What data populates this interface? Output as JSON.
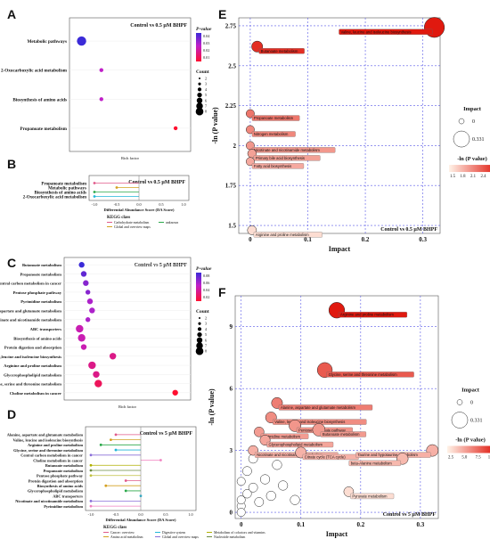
{
  "panels": {
    "A": "A",
    "B": "B",
    "C": "C",
    "D": "D",
    "E": "E",
    "F": "F"
  },
  "chart_data": [
    {
      "panel": "A",
      "type": "scatter",
      "title": "Control vs 0.5 μM BHPF",
      "ylabel": "KEGG pathways",
      "xlabel": "Rich factor",
      "categories": [
        "Metabolic pathways",
        "2-Oxocarboxylic acid metabolism",
        "Biosynthesis of amino acids",
        "Propanoate metabolism"
      ],
      "x": [
        0.01,
        0.05,
        0.05,
        0.2
      ],
      "count": [
        8,
        2,
        2,
        2
      ],
      "pvalue": [
        0.05,
        0.03,
        0.03,
        0.01
      ],
      "legend_title": "P-value",
      "legend_ticks": [
        "0.04",
        "0.03",
        "0.02",
        "0.01"
      ],
      "count_legend_title": "Count",
      "count_ticks": [
        "2",
        "3",
        "4",
        "5",
        "6",
        "7",
        "8"
      ]
    },
    {
      "panel": "B",
      "type": "bar",
      "title": "Control vs 0.5 μM BHPF",
      "xlabel": "Differential Abundance Score (DA Score)",
      "xlim": [
        -1,
        1
      ],
      "xticks": [
        "-1.0",
        "-0.5",
        "0.0",
        "0.5",
        "1.0"
      ],
      "categories": [
        "Propanoate metabolism",
        "Metabolic pathways",
        "Biosynthesis of amino acids",
        "2-Oxocarboxylic acid metabolism"
      ],
      "values": [
        -1.0,
        -0.5,
        -1.0,
        -1.0
      ],
      "count": [
        2,
        8,
        2,
        2
      ],
      "legend_title": "KEGG class",
      "legend_entries": [
        "Carbohydrate metabolism",
        "Global and overview maps",
        "unknown"
      ]
    },
    {
      "panel": "C",
      "type": "scatter",
      "title": "Control vs 5 μM BHPF",
      "ylabel": "KEGG pathways",
      "xlabel": "Rich factor",
      "categories": [
        "Butanoate metabolism",
        "Propanoate metabolism",
        "Central carbon metabolism in cancer",
        "Pentose phosphate pathway",
        "Pyrimidine metabolism",
        "Alanine,aspartate and glutamate metabolism",
        "Nicotinate and nicotinamide metabolism",
        "ABC transporters",
        "Biosynthesis of amino acids",
        "Protein digestion and absorption",
        "Valine,leucine and isoleucine biosynthesis",
        "Arginine and proline metabolism",
        "Glycerophospholipid metabolism",
        "Glycine, serine and threonine metabolism",
        "Choline metabolism in cancer"
      ],
      "x": [
        0.05,
        0.06,
        0.07,
        0.08,
        0.09,
        0.1,
        0.08,
        0.04,
        0.05,
        0.06,
        0.2,
        0.1,
        0.12,
        0.13,
        0.5
      ],
      "count": [
        4,
        4,
        4,
        3,
        4,
        4,
        3,
        6,
        6,
        4,
        5,
        6,
        5,
        6,
        4
      ],
      "pvalue": [
        0.08,
        0.07,
        0.06,
        0.06,
        0.05,
        0.05,
        0.05,
        0.04,
        0.04,
        0.04,
        0.03,
        0.03,
        0.03,
        0.02,
        0.01
      ],
      "legend_title": "P-value",
      "legend_ticks": [
        "0.08",
        "0.06",
        "0.04",
        "0.02"
      ],
      "count_legend_title": "Count",
      "count_ticks": [
        "2",
        "3",
        "4",
        "5",
        "6",
        "7",
        "8"
      ]
    },
    {
      "panel": "D",
      "type": "bar",
      "title": "Control vs 5 μM BHPF",
      "xlabel": "Differential Abundance Score (DA Score)",
      "xlim": [
        -1,
        1
      ],
      "xticks": [
        "-1.0",
        "-0.5",
        "0.0",
        "0.5",
        "1.0"
      ],
      "categories": [
        "Alanine, aspartate and glutamate metabolism",
        "Valine, leucine and isoleucine biosynthesis",
        "Arginine and proline metabolism",
        "Glycine, serine and threonine metabolism",
        "Central carbon metabolism in cancer",
        "Choline metabolism in cancer",
        "Butanoate metabolism",
        "Propanoate metabolism",
        "Pentose phosphate pathway",
        "Protein digestion and absorption",
        "Biosynthesis of amino acids",
        "Glycerophospholipid metabolism",
        "ABC transporters",
        "Nicotinate and nicotinamide metabolism",
        "Pyrimidine metabolism"
      ],
      "values": [
        -0.5,
        -0.6,
        -0.8,
        -0.5,
        -1.0,
        0.4,
        -1.0,
        -1.0,
        -1.0,
        -0.3,
        -0.7,
        -0.3,
        0.0,
        -1.0,
        -1.0
      ],
      "legend_title": "KEGG class",
      "legend_entries": [
        "Cancer: overview",
        "Amino acid metabolism",
        "Lipid metabolism",
        "Digestive system",
        "Global and overview maps",
        "Membrane transport",
        "Metabolism of cofactors and vitamins",
        "Nucleotide metabolism",
        "Carbohydrate metabolism"
      ]
    },
    {
      "panel": "E",
      "type": "scatter",
      "title": "Control vs 0.5 μM BHPF",
      "xlabel": "Impact",
      "ylabel": "-ln (P value)",
      "xlim": [
        -0.02,
        0.33
      ],
      "ylim": [
        1.45,
        2.8
      ],
      "xticks": [
        0,
        0.1,
        0.2,
        0.3
      ],
      "yticks": [
        1.5,
        1.75,
        2.0,
        2.25,
        2.5,
        2.75
      ],
      "points": [
        {
          "label": "Valine, leucine and isoleucine biosynthesis",
          "x": 0.32,
          "y": 2.74,
          "impact": 0.331,
          "v": 2.74
        },
        {
          "label": "Butanoate metabolism",
          "x": 0.012,
          "y": 2.62,
          "impact": 0.1,
          "v": 2.62
        },
        {
          "label": "Propanoate metabolism",
          "x": 0.0,
          "y": 2.2,
          "impact": 0.03,
          "v": 2.2
        },
        {
          "label": "Nitrogen metabolism",
          "x": 0.0,
          "y": 2.1,
          "impact": 0.03,
          "v": 2.1
        },
        {
          "label": "Nicotinate and nicotinamide metabolism",
          "x": 0.0,
          "y": 2.0,
          "impact": 0.03,
          "v": 2.0
        },
        {
          "label": "Primary bile acid biosynthesis",
          "x": 0.003,
          "y": 1.95,
          "impact": 0.04,
          "v": 1.95
        },
        {
          "label": "Fatty acid biosynthesis",
          "x": 0.0,
          "y": 1.9,
          "impact": 0.03,
          "v": 1.9
        },
        {
          "label": "Arginine and proline metabolism",
          "x": 0.003,
          "y": 1.47,
          "impact": 0.05,
          "v": 1.47
        }
      ],
      "size_legend_title": "Impact",
      "size_ticks": [
        "0",
        "0.331"
      ],
      "color_legend_title": "-ln (P value)",
      "color_ticks": [
        "1.5",
        "1.8",
        "2.1",
        "2.4",
        "2.7"
      ],
      "color_low": "#fff3e8",
      "color_high": "#e0190f"
    },
    {
      "panel": "F",
      "type": "scatter",
      "title": "Control vs 5 μM BHPF",
      "xlabel": "Impact",
      "ylabel": "-ln (P value)",
      "xlim": [
        -0.01,
        0.33
      ],
      "ylim": [
        -0.3,
        10.5
      ],
      "xticks": [
        0,
        0.1,
        0.2,
        0.3
      ],
      "yticks": [
        0,
        3,
        6,
        9
      ],
      "points": [
        {
          "label": "Arginine and proline metabolism",
          "x": 0.16,
          "y": 9.8,
          "impact": 0.22,
          "v": 9.8
        },
        {
          "label": "Glycine, serine and threonine metabolism",
          "x": 0.14,
          "y": 6.9,
          "impact": 0.2,
          "v": 6.9
        },
        {
          "label": "Alanine, aspartate and glutamate metabolism",
          "x": 0.06,
          "y": 5.3,
          "impact": 0.1,
          "v": 5.3
        },
        {
          "label": "Valine, leucine and isoleucine biosynthesis",
          "x": 0.05,
          "y": 4.6,
          "impact": 0.1,
          "v": 4.6
        },
        {
          "label": "Pentose phosphate pathway",
          "x": 0.09,
          "y": 4.2,
          "impact": 0.12,
          "v": 4.2
        },
        {
          "label": "Butanoate metabolism",
          "x": 0.13,
          "y": 4.0,
          "impact": 0.14,
          "v": 4.0
        },
        {
          "label": "Pyrimidine metabolism",
          "x": 0.03,
          "y": 3.9,
          "impact": 0.07,
          "v": 3.9
        },
        {
          "label": "Glycerophospholipid metabolism",
          "x": 0.04,
          "y": 3.5,
          "impact": 0.08,
          "v": 3.5
        },
        {
          "label": "Nicotinate and nicotinamide metabolism",
          "x": 0.02,
          "y": 3.0,
          "impact": 0.07,
          "v": 3.0
        },
        {
          "label": "Citrate cycle (TCA cycle)",
          "x": 0.1,
          "y": 2.9,
          "impact": 0.1,
          "v": 2.9
        },
        {
          "label": "Taurine and hypotaurine metabolism",
          "x": 0.32,
          "y": 3.0,
          "impact": 0.12,
          "v": 3.0
        },
        {
          "label": "beta-Alanine metabolism",
          "x": 0.27,
          "y": 2.6,
          "impact": 0.11,
          "v": 2.6
        },
        {
          "label": "Pyruvate metabolism",
          "x": 0.18,
          "y": 1.0,
          "impact": 0.07,
          "v": 1.0
        },
        {
          "label": "",
          "x": 0.0,
          "y": 0.3,
          "impact": 0.03,
          "v": 0.3
        },
        {
          "label": "",
          "x": 0.0,
          "y": 0.6,
          "impact": 0.03,
          "v": 0.6
        },
        {
          "label": "",
          "x": 0.01,
          "y": 0.9,
          "impact": 0.04,
          "v": 0.9
        },
        {
          "label": "",
          "x": 0.02,
          "y": 1.2,
          "impact": 0.05,
          "v": 1.2
        },
        {
          "label": "",
          "x": 0.0,
          "y": 1.5,
          "impact": 0.03,
          "v": 1.5
        },
        {
          "label": "",
          "x": 0.03,
          "y": 0.5,
          "impact": 0.05,
          "v": 0.5
        },
        {
          "label": "",
          "x": 0.05,
          "y": 0.8,
          "impact": 0.06,
          "v": 0.8
        },
        {
          "label": "",
          "x": 0.04,
          "y": 1.6,
          "impact": 0.06,
          "v": 1.6
        },
        {
          "label": "",
          "x": 0.01,
          "y": 2.0,
          "impact": 0.05,
          "v": 2.0
        },
        {
          "label": "",
          "x": 0.07,
          "y": 1.3,
          "impact": 0.06,
          "v": 1.3
        },
        {
          "label": "",
          "x": 0.06,
          "y": 2.3,
          "impact": 0.06,
          "v": 2.3
        },
        {
          "label": "",
          "x": 0.09,
          "y": 0.6,
          "impact": 0.06,
          "v": 0.6
        },
        {
          "label": "",
          "x": 0.0,
          "y": 0.0,
          "impact": 0.03,
          "v": 0.0
        },
        {
          "label": "",
          "x": 0.02,
          "y": 2.6,
          "impact": 0.05,
          "v": 2.6
        }
      ],
      "size_legend_title": "Impact",
      "size_ticks": [
        "0",
        "0.331"
      ],
      "color_legend_title": "-ln (P value)",
      "color_ticks": [
        "2.5",
        "5.0",
        "7.5",
        "10.0"
      ],
      "color_low": "#fff3e8",
      "color_high": "#e0190f"
    }
  ]
}
